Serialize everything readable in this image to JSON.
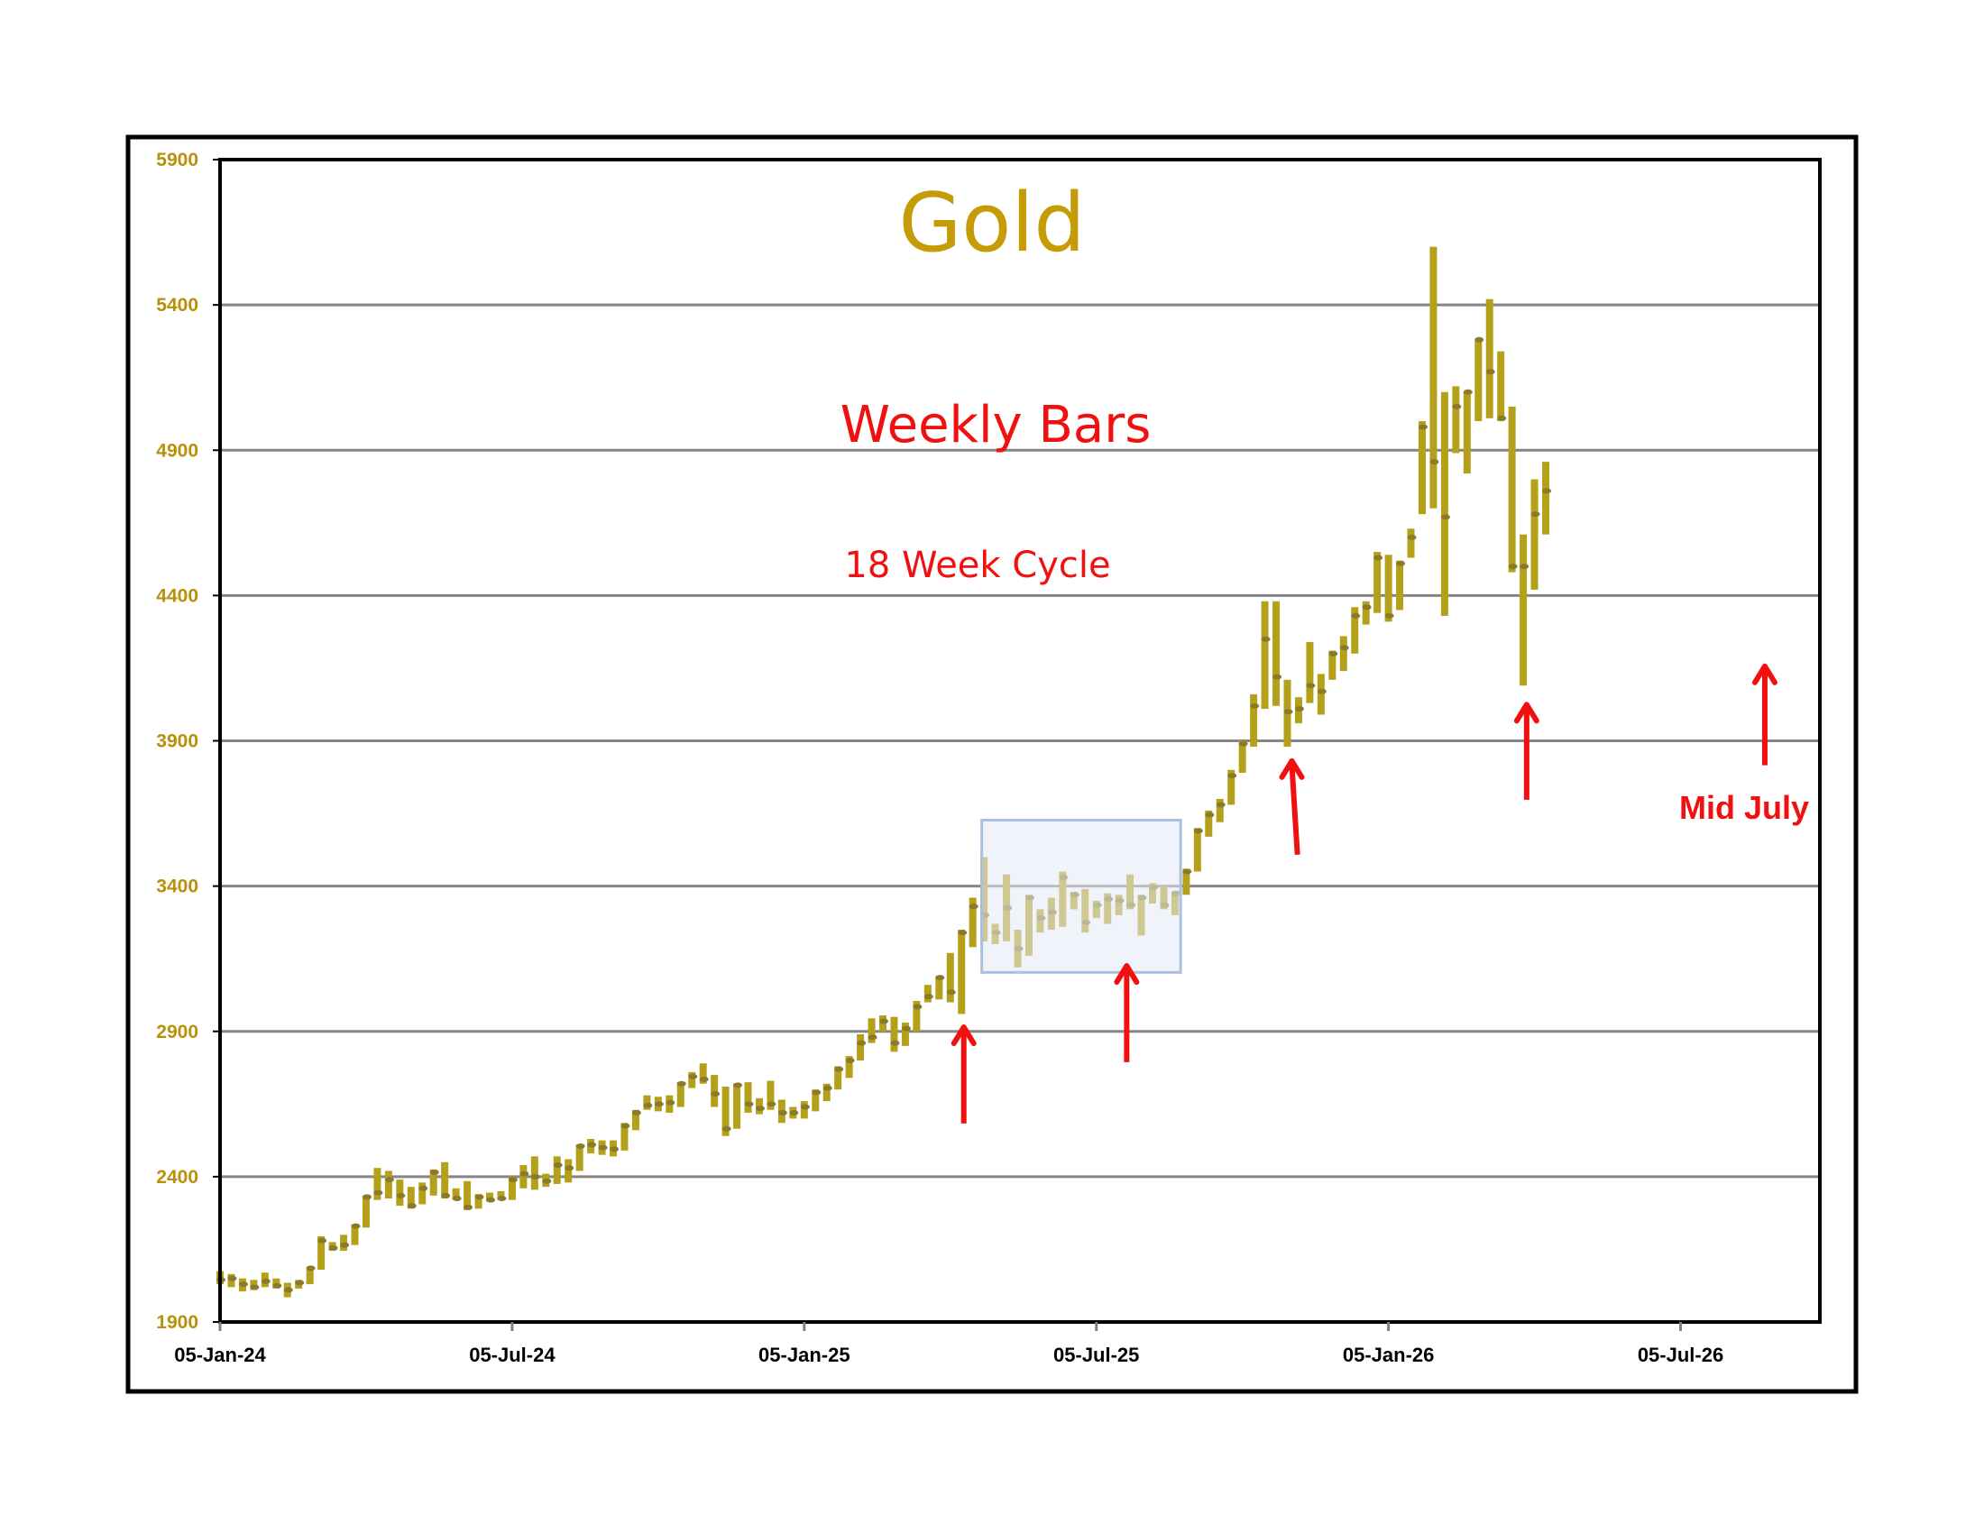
{
  "chart_data": {
    "type": "bar",
    "subtype": "weekly high-low-close bars",
    "title": "Gold",
    "subtitle": "Weekly Bars",
    "note": "18 Week Cycle",
    "annotation_text": "Mid July",
    "x_start_label": "05-Jan-24",
    "x_unit": "weeks since 05-Jan-24",
    "xlim": [
      0,
      142.4
    ],
    "ylim": [
      1900,
      5900
    ],
    "yticks": [
      1900,
      2400,
      2900,
      3400,
      3900,
      4400,
      4900,
      5400,
      5900
    ],
    "xticks": [
      {
        "week": 0,
        "label": "05-Jan-24"
      },
      {
        "week": 26,
        "label": "05-Jul-24"
      },
      {
        "week": 52,
        "label": "05-Jan-25"
      },
      {
        "week": 78,
        "label": "05-Jul-25"
      },
      {
        "week": 104,
        "label": "05-Jan-26"
      },
      {
        "week": 130,
        "label": "05-Jul-26"
      }
    ],
    "grid": true,
    "bar_color": "#B5A01A",
    "close_color": "#8A7A2A",
    "arrow_color": "#F01010",
    "highlight_box": {
      "week_from": 67.8,
      "week_to": 85.5,
      "price_low": 3103,
      "price_high": 3627,
      "fill": "#E3EAF6",
      "stroke": "#A9C0E0"
    },
    "cycle_arrows": [
      {
        "week": 66.2,
        "tip": 2927,
        "tail": 2583
      },
      {
        "week": 80.7,
        "tip": 3138,
        "tail": 2794
      },
      {
        "week": 95.4,
        "tip": 3843,
        "tail": 3508,
        "tail_week": 95.9
      },
      {
        "week": 116.3,
        "tip": 4037,
        "tail": 3697
      },
      {
        "week": 137.5,
        "tip": 4169,
        "tail": 3816
      }
    ],
    "series_fields": [
      "high",
      "low",
      "close"
    ],
    "bars": [
      [
        2075,
        2030,
        2045
      ],
      [
        2065,
        2020,
        2050
      ],
      [
        2050,
        2005,
        2030
      ],
      [
        2045,
        2010,
        2020
      ],
      [
        2070,
        2020,
        2040
      ],
      [
        2050,
        2015,
        2025
      ],
      [
        2035,
        1985,
        2010
      ],
      [
        2045,
        2015,
        2035
      ],
      [
        2090,
        2030,
        2085
      ],
      [
        2195,
        2080,
        2180
      ],
      [
        2175,
        2145,
        2155
      ],
      [
        2200,
        2145,
        2165
      ],
      [
        2235,
        2165,
        2230
      ],
      [
        2335,
        2225,
        2330
      ],
      [
        2430,
        2320,
        2345
      ],
      [
        2420,
        2325,
        2390
      ],
      [
        2390,
        2300,
        2335
      ],
      [
        2365,
        2290,
        2300
      ],
      [
        2380,
        2305,
        2360
      ],
      [
        2425,
        2335,
        2415
      ],
      [
        2450,
        2325,
        2335
      ],
      [
        2360,
        2320,
        2325
      ],
      [
        2385,
        2285,
        2295
      ],
      [
        2340,
        2290,
        2330
      ],
      [
        2345,
        2315,
        2320
      ],
      [
        2350,
        2320,
        2325
      ],
      [
        2400,
        2320,
        2390
      ],
      [
        2440,
        2360,
        2410
      ],
      [
        2470,
        2355,
        2400
      ],
      [
        2410,
        2365,
        2385
      ],
      [
        2470,
        2375,
        2440
      ],
      [
        2460,
        2380,
        2430
      ],
      [
        2510,
        2420,
        2505
      ],
      [
        2530,
        2480,
        2510
      ],
      [
        2525,
        2475,
        2500
      ],
      [
        2525,
        2470,
        2495
      ],
      [
        2585,
        2490,
        2575
      ],
      [
        2630,
        2560,
        2620
      ],
      [
        2680,
        2630,
        2645
      ],
      [
        2675,
        2625,
        2650
      ],
      [
        2680,
        2620,
        2655
      ],
      [
        2725,
        2640,
        2720
      ],
      [
        2760,
        2705,
        2745
      ],
      [
        2790,
        2720,
        2735
      ],
      [
        2750,
        2640,
        2685
      ],
      [
        2710,
        2540,
        2565
      ],
      [
        2720,
        2565,
        2715
      ],
      [
        2725,
        2620,
        2650
      ],
      [
        2670,
        2615,
        2635
      ],
      [
        2730,
        2630,
        2650
      ],
      [
        2665,
        2585,
        2620
      ],
      [
        2640,
        2600,
        2620
      ],
      [
        2660,
        2600,
        2640
      ],
      [
        2700,
        2625,
        2690
      ],
      [
        2720,
        2660,
        2705
      ],
      [
        2780,
        2700,
        2770
      ],
      [
        2815,
        2740,
        2800
      ],
      [
        2890,
        2800,
        2860
      ],
      [
        2945,
        2860,
        2880
      ],
      [
        2955,
        2900,
        2935
      ],
      [
        2950,
        2830,
        2860
      ],
      [
        2930,
        2850,
        2910
      ],
      [
        3005,
        2900,
        2985
      ],
      [
        3060,
        3000,
        3020
      ],
      [
        3090,
        3010,
        3085
      ],
      [
        3170,
        3000,
        3035
      ],
      [
        3250,
        2960,
        3240
      ],
      [
        3360,
        3190,
        3330
      ],
      [
        3500,
        3210,
        3300
      ],
      [
        3270,
        3200,
        3240
      ],
      [
        3440,
        3210,
        3325
      ],
      [
        3250,
        3120,
        3185
      ],
      [
        3370,
        3160,
        3360
      ],
      [
        3320,
        3240,
        3290
      ],
      [
        3360,
        3250,
        3310
      ],
      [
        3450,
        3260,
        3430
      ],
      [
        3380,
        3320,
        3370
      ],
      [
        3390,
        3240,
        3275
      ],
      [
        3350,
        3290,
        3335
      ],
      [
        3375,
        3270,
        3355
      ],
      [
        3370,
        3300,
        3350
      ],
      [
        3440,
        3320,
        3335
      ],
      [
        3370,
        3230,
        3360
      ],
      [
        3410,
        3340,
        3395
      ],
      [
        3400,
        3320,
        3335
      ],
      [
        3380,
        3300,
        3375
      ],
      [
        3460,
        3370,
        3450
      ],
      [
        3600,
        3450,
        3590
      ],
      [
        3660,
        3570,
        3645
      ],
      [
        3700,
        3620,
        3680
      ],
      [
        3800,
        3680,
        3780
      ],
      [
        3900,
        3790,
        3890
      ],
      [
        4060,
        3880,
        4020
      ],
      [
        4380,
        4010,
        4250
      ],
      [
        4380,
        4020,
        4120
      ],
      [
        4110,
        3880,
        4000
      ],
      [
        4050,
        3960,
        4010
      ],
      [
        4240,
        4030,
        4090
      ],
      [
        4130,
        3990,
        4070
      ],
      [
        4210,
        4110,
        4200
      ],
      [
        4260,
        4140,
        4220
      ],
      [
        4360,
        4200,
        4330
      ],
      [
        4380,
        4300,
        4360
      ],
      [
        4550,
        4340,
        4530
      ],
      [
        4540,
        4310,
        4330
      ],
      [
        4520,
        4350,
        4510
      ],
      [
        4630,
        4530,
        4600
      ],
      [
        5000,
        4680,
        4980
      ],
      [
        5600,
        4700,
        4860
      ],
      [
        5100,
        4330,
        4670
      ],
      [
        5120,
        4890,
        5050
      ],
      [
        5100,
        4820,
        5100
      ],
      [
        5280,
        5000,
        5280
      ],
      [
        5420,
        5010,
        5170
      ],
      [
        5240,
        5000,
        5010
      ],
      [
        5050,
        4480,
        4500
      ],
      [
        4610,
        4090,
        4500
      ],
      [
        4800,
        4420,
        4680
      ],
      [
        4860,
        4610,
        4760
      ]
    ]
  }
}
